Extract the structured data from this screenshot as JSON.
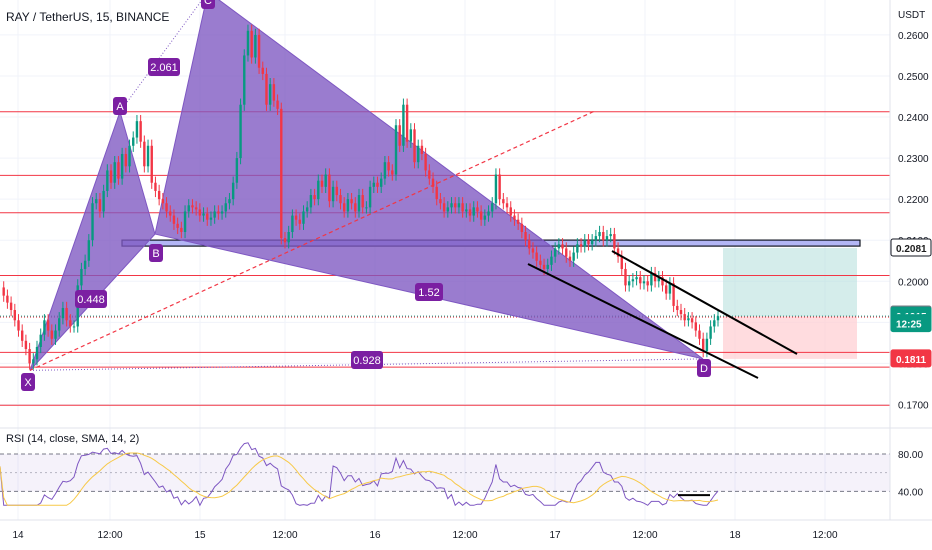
{
  "header": {
    "title": "RAY / TetherUS, 15, BINANCE"
  },
  "chart_data": {
    "type": "line",
    "symbol": "RAY / TetherUS",
    "interval": "15",
    "exchange": "BINANCE",
    "currency_label": "USDT",
    "ylim": [
      0.165,
      0.2685
    ],
    "y_ticks": [
      "0.1700",
      "0.1800",
      "0.1900",
      "0.2000",
      "0.2100",
      "0.2200",
      "0.2300",
      "0.2400",
      "0.2500",
      "0.2600"
    ],
    "x_ticks": [
      "14",
      "12:00",
      "15",
      "12:00",
      "16",
      "12:00",
      "17",
      "12:00",
      "18",
      "12:00"
    ],
    "price_labels": [
      {
        "text": "0.2081",
        "value": 0.2081,
        "color": "#1e1e1e",
        "bg": "#ffffff"
      },
      {
        "text": "0.1918",
        "value": 0.1918,
        "color": "#ffffff",
        "bg": "#787b86"
      },
      {
        "text": "0.1915",
        "value": 0.1915,
        "color": "#ffffff",
        "bg": "#089981"
      },
      {
        "text": "12:25",
        "value": 0.1897,
        "color": "#ffffff",
        "bg": "#089981"
      },
      {
        "text": "0.1811",
        "value": 0.1811,
        "color": "#ffffff",
        "bg": "#f23645"
      }
    ],
    "horizontal_levels": [
      0.2413,
      0.2258,
      0.2167,
      0.2014,
      0.1827,
      0.1791,
      0.1698
    ],
    "last_price": 0.1915,
    "pattern": {
      "points": [
        {
          "label": "X",
          "value": 0.1783
        },
        {
          "label": "A",
          "value": 0.2413
        },
        {
          "label": "B",
          "value": 0.2115
        },
        {
          "label": "C",
          "value": 0.2705
        },
        {
          "label": "D",
          "value": 0.1811
        }
      ],
      "ratios": [
        "2.061",
        "0.448",
        "1.52",
        "0.928"
      ]
    },
    "position": {
      "entry": 0.1915,
      "target": 0.2081,
      "stop": 0.1811
    },
    "rsi": {
      "title": "RSI (14, close, SMA, 14, 2)",
      "upper": "80.00",
      "lower": "40.00",
      "ylim": [
        20,
        95
      ]
    },
    "price_series": [
      0.1985,
      0.1965,
      0.1948,
      0.193,
      0.1905,
      0.188,
      0.1855,
      0.1835,
      0.18,
      0.181,
      0.184,
      0.187,
      0.1905,
      0.188,
      0.186,
      0.188,
      0.191,
      0.1935,
      0.1905,
      0.189,
      0.189,
      0.199,
      0.203,
      0.205,
      0.21,
      0.219,
      0.22,
      0.217,
      0.222,
      0.227,
      0.224,
      0.229,
      0.225,
      0.231,
      0.228,
      0.233,
      0.235,
      0.239,
      0.234,
      0.228,
      0.233,
      0.224,
      0.222,
      0.22,
      0.219,
      0.217,
      0.216,
      0.214,
      0.213,
      0.212,
      0.217,
      0.2185,
      0.218,
      0.2175,
      0.216,
      0.2165,
      0.215,
      0.2155,
      0.217,
      0.2165,
      0.217,
      0.219,
      0.22,
      0.224,
      0.23,
      0.243,
      0.255,
      0.261,
      0.2545,
      0.26,
      0.252,
      0.2505,
      0.243,
      0.248,
      0.244,
      0.242,
      0.2105,
      0.2095,
      0.212,
      0.216,
      0.215,
      0.214,
      0.217,
      0.218,
      0.221,
      0.22,
      0.2245,
      0.223,
      0.226,
      0.2195,
      0.223,
      0.221,
      0.219,
      0.217,
      0.22,
      0.219,
      0.217,
      0.221,
      0.218,
      0.218,
      0.223,
      0.224,
      0.223,
      0.225,
      0.229,
      0.227,
      0.226,
      0.238,
      0.233,
      0.243,
      0.234,
      0.237,
      0.229,
      0.233,
      0.231,
      0.227,
      0.225,
      0.223,
      0.22,
      0.219,
      0.217,
      0.218,
      0.219,
      0.218,
      0.219,
      0.217,
      0.2175,
      0.216,
      0.218,
      0.217,
      0.215,
      0.216,
      0.217,
      0.219,
      0.226,
      0.22,
      0.219,
      0.218,
      0.216,
      0.215,
      0.214,
      0.212,
      0.21,
      0.208,
      0.207,
      0.205,
      0.204,
      0.203,
      0.204,
      0.206,
      0.208,
      0.209,
      0.208,
      0.206,
      0.205,
      0.207,
      0.209,
      0.2085,
      0.21,
      0.209,
      0.21,
      0.211,
      0.212,
      0.21,
      0.211,
      0.2115,
      0.208,
      0.206,
      0.203,
      0.199,
      0.2,
      0.2005,
      0.201,
      0.1995,
      0.2,
      0.199,
      0.202,
      0.2,
      0.201,
      0.199,
      0.197,
      0.1995,
      0.194,
      0.193,
      0.192,
      0.1905,
      0.191,
      0.19,
      0.188,
      0.186,
      0.183,
      0.186,
      0.189,
      0.1905,
      0.1915
    ]
  }
}
